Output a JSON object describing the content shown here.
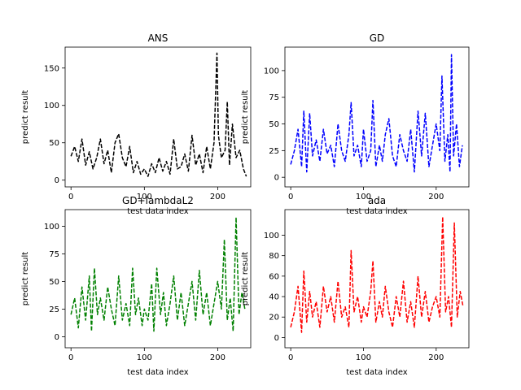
{
  "chart_data": [
    {
      "type": "line",
      "title": "ANS",
      "xlabel": "test data index",
      "ylabel": "predict result",
      "xlim": [
        -8,
        245
      ],
      "ylim": [
        -9,
        178
      ],
      "xticks": [
        0,
        100,
        200
      ],
      "yticks": [
        0,
        50,
        100,
        150
      ],
      "line_style": "dashed",
      "color": "#000000",
      "grid": false,
      "series": [
        {
          "x": [
            0,
            5,
            10,
            15,
            20,
            25,
            30,
            35,
            40,
            45,
            50,
            55,
            60,
            65,
            70,
            75,
            80,
            85,
            90,
            95,
            100,
            105,
            110,
            115,
            120,
            125,
            130,
            135,
            140,
            145,
            150,
            155,
            160,
            165,
            170,
            175,
            180,
            185,
            190,
            195,
            199,
            201,
            205,
            210,
            213,
            216,
            220,
            225,
            230,
            235,
            239
          ],
          "y": [
            32,
            45,
            25,
            55,
            20,
            38,
            15,
            30,
            55,
            22,
            40,
            10,
            50,
            62,
            30,
            18,
            45,
            10,
            25,
            8,
            15,
            5,
            22,
            10,
            30,
            12,
            25,
            8,
            55,
            15,
            18,
            35,
            12,
            60,
            20,
            35,
            10,
            45,
            15,
            50,
            170,
            60,
            30,
            40,
            105,
            20,
            75,
            30,
            40,
            15,
            5
          ]
        }
      ]
    },
    {
      "type": "line",
      "title": "GD",
      "xlabel": "test data index",
      "ylabel": "predict result",
      "xlim": [
        -8,
        245
      ],
      "ylim": [
        -9,
        122
      ],
      "xticks": [
        0,
        100,
        200
      ],
      "yticks": [
        0,
        25,
        50,
        75,
        100
      ],
      "line_style": "dashed",
      "color": "#0000ff",
      "grid": false,
      "series": [
        {
          "x": [
            0,
            5,
            10,
            15,
            18,
            22,
            26,
            30,
            35,
            40,
            45,
            50,
            55,
            60,
            65,
            70,
            75,
            80,
            83,
            87,
            92,
            97,
            100,
            105,
            110,
            113,
            117,
            122,
            126,
            130,
            135,
            140,
            145,
            150,
            155,
            160,
            165,
            170,
            175,
            180,
            185,
            190,
            195,
            200,
            205,
            208,
            212,
            216,
            219,
            221,
            224,
            228,
            232,
            236
          ],
          "y": [
            12,
            25,
            45,
            10,
            62,
            5,
            60,
            20,
            35,
            15,
            45,
            22,
            30,
            10,
            50,
            25,
            15,
            40,
            70,
            20,
            30,
            10,
            45,
            15,
            25,
            72,
            10,
            30,
            15,
            40,
            55,
            20,
            10,
            40,
            25,
            15,
            45,
            5,
            62,
            20,
            60,
            10,
            30,
            50,
            25,
            95,
            15,
            40,
            5,
            115,
            20,
            50,
            10,
            30
          ]
        }
      ]
    },
    {
      "type": "line",
      "title": "GD+lambdaL2",
      "xlabel": "test data index",
      "ylabel": "predict result",
      "xlim": [
        -8,
        245
      ],
      "ylim": [
        -10,
        115
      ],
      "xticks": [
        0,
        100,
        200
      ],
      "yticks": [
        0,
        25,
        50,
        75,
        100
      ],
      "line_style": "dashed",
      "color": "#008000",
      "grid": false,
      "series": [
        {
          "x": [
            0,
            5,
            10,
            15,
            20,
            25,
            28,
            32,
            36,
            40,
            45,
            50,
            55,
            60,
            65,
            70,
            75,
            80,
            84,
            88,
            92,
            97,
            100,
            105,
            110,
            113,
            117,
            122,
            126,
            130,
            135,
            140,
            145,
            150,
            155,
            160,
            165,
            170,
            175,
            180,
            185,
            190,
            195,
            200,
            205,
            209,
            213,
            217,
            221,
            225,
            229,
            233,
            237
          ],
          "y": [
            20,
            35,
            8,
            45,
            15,
            55,
            5,
            62,
            20,
            35,
            15,
            45,
            25,
            10,
            55,
            15,
            30,
            10,
            62,
            20,
            35,
            10,
            25,
            15,
            48,
            5,
            62,
            20,
            40,
            10,
            30,
            55,
            15,
            40,
            10,
            30,
            50,
            15,
            60,
            20,
            40,
            10,
            30,
            50,
            25,
            88,
            15,
            35,
            5,
            108,
            20,
            40,
            25
          ]
        }
      ]
    },
    {
      "type": "line",
      "title": "ada",
      "xlabel": "test data index",
      "ylabel": "predict result",
      "xlim": [
        -8,
        245
      ],
      "ylim": [
        -10,
        125
      ],
      "xticks": [
        0,
        100,
        200
      ],
      "yticks": [
        0,
        20,
        40,
        60,
        80,
        100
      ],
      "line_style": "dashed",
      "color": "#ff0000",
      "grid": false,
      "series": [
        {
          "x": [
            0,
            5,
            10,
            15,
            18,
            22,
            26,
            30,
            35,
            40,
            45,
            50,
            55,
            60,
            65,
            70,
            75,
            80,
            83,
            87,
            92,
            97,
            100,
            105,
            110,
            113,
            117,
            122,
            126,
            130,
            135,
            140,
            145,
            150,
            155,
            160,
            165,
            170,
            175,
            180,
            185,
            190,
            195,
            200,
            205,
            209,
            213,
            217,
            221,
            225,
            229,
            233,
            237
          ],
          "y": [
            10,
            25,
            50,
            5,
            65,
            15,
            45,
            20,
            35,
            10,
            50,
            25,
            40,
            15,
            55,
            20,
            30,
            10,
            85,
            25,
            40,
            15,
            30,
            20,
            45,
            75,
            15,
            35,
            20,
            50,
            25,
            10,
            40,
            20,
            55,
            15,
            35,
            10,
            60,
            20,
            45,
            15,
            30,
            40,
            20,
            118,
            25,
            40,
            10,
            112,
            20,
            45,
            30
          ]
        }
      ]
    }
  ]
}
